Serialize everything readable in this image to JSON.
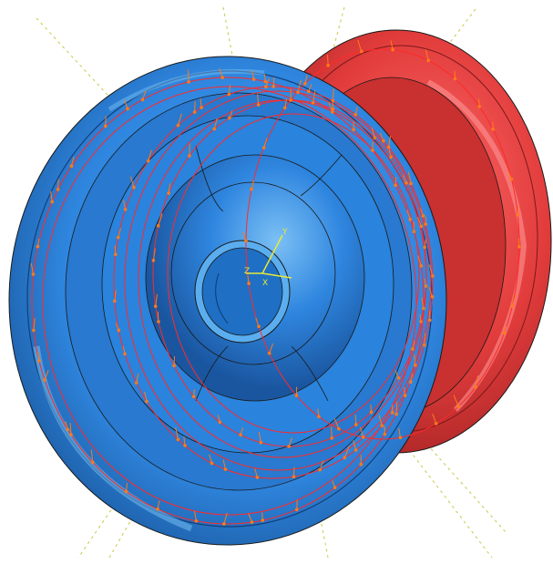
{
  "viewport": {
    "background": "#ffffff"
  },
  "model": {
    "parts": [
      {
        "name": "front-wheel-half",
        "color": "#2f86df",
        "shade": "#1d5fa8",
        "highlight": "#6fb6f2"
      },
      {
        "name": "rear-wheel-half",
        "color": "#e23c3c",
        "shade": "#a82525",
        "highlight": "#ff7a7a"
      }
    ],
    "edge_color": "#1a1a1a",
    "constraint_color": "#ff2a2a",
    "load_arrow_color": "#ff7a1a",
    "guide_line_color": "#c8c84a"
  },
  "triad": {
    "labels": {
      "x": "X",
      "y": "Y",
      "z": "Z"
    },
    "colors": {
      "x": "#e8e83a",
      "y": "#e8e83a",
      "z": "#e8e83a"
    }
  }
}
